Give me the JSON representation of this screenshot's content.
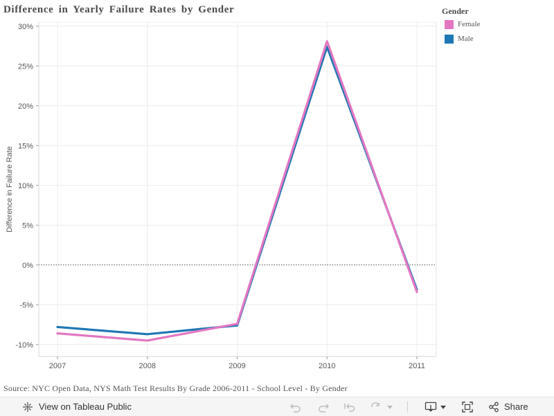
{
  "chart_data": {
    "type": "line",
    "title": "Difference in Yearly Failure Rates by Gender",
    "xlabel": "",
    "ylabel": "Difference in Failure Rate",
    "categories": [
      "2007",
      "2008",
      "2009",
      "2010",
      "2011"
    ],
    "yticks": [
      30,
      25,
      20,
      15,
      10,
      5,
      0,
      -5,
      -10
    ],
    "ytick_labels": [
      "30%",
      "25%",
      "20%",
      "15%",
      "10%",
      "5%",
      "0%",
      "-5%",
      "-10%"
    ],
    "ylim": [
      -11.5,
      30.5
    ],
    "grid": true,
    "reference_line": 0,
    "legend": {
      "title": "Gender",
      "position": "top-right"
    },
    "series": [
      {
        "name": "Female",
        "color": "#e377c2",
        "values": [
          -8.6,
          -9.5,
          -7.4,
          28.1,
          -3.4
        ]
      },
      {
        "name": "Male",
        "color": "#1f77b4",
        "values": [
          -7.8,
          -8.7,
          -7.6,
          27.4,
          -3.1
        ]
      }
    ]
  },
  "source_text": "Source: NYC Open Data, NYS Math Test Results By Grade 2006-2011 - School Level - By Gender",
  "toolbar": {
    "view_label": "View on Tableau Public",
    "share_label": "Share"
  }
}
